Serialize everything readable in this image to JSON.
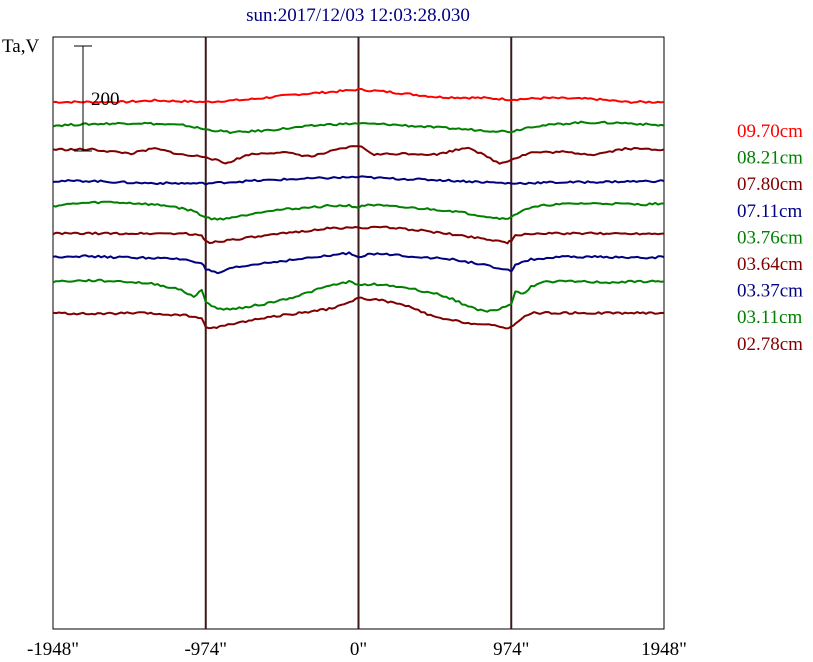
{
  "chart_data": {
    "type": "line",
    "title": "sun:2017/12/03 12:03:28.030",
    "ylabel": "Ta,V",
    "x_unit": "arcsec",
    "xlim": [
      -1948,
      1948
    ],
    "x_ticks": [
      {
        "value": -1948,
        "label": "-1948\""
      },
      {
        "value": -974,
        "label": "-974\""
      },
      {
        "value": 0,
        "label": "0\""
      },
      {
        "value": 974,
        "label": "974\""
      },
      {
        "value": 1948,
        "label": "1948\""
      }
    ],
    "vertical_reference_lines": [
      -974,
      0,
      974
    ],
    "scale_bar": {
      "value": 200,
      "label": "200"
    },
    "series": [
      {
        "name": "09.70cm",
        "color": "#ff0000",
        "offset": 0,
        "x": [
          -1948,
          -1500,
          -1300,
          -974,
          -700,
          -400,
          -100,
          0,
          200,
          500,
          800,
          974,
          1200,
          1500,
          1700,
          1948
        ],
        "y": [
          0,
          0,
          3,
          0,
          5,
          15,
          22,
          25,
          20,
          10,
          8,
          5,
          8,
          6,
          0,
          0
        ]
      },
      {
        "name": "08.21cm",
        "color": "#008000",
        "offset": -47,
        "x": [
          -1948,
          -1700,
          -1400,
          -1100,
          -974,
          -800,
          -600,
          -400,
          -200,
          0,
          200,
          400,
          600,
          800,
          974,
          1100,
          1400,
          1700,
          1948
        ],
        "y": [
          0,
          3,
          5,
          0,
          -8,
          -14,
          -10,
          -4,
          2,
          4,
          2,
          -2,
          -6,
          -10,
          -12,
          -2,
          6,
          5,
          0
        ]
      },
      {
        "name": "07.80cm",
        "color": "#800000",
        "offset": -95,
        "x": [
          -1948,
          -1700,
          -1450,
          -1300,
          -1100,
          -974,
          -850,
          -700,
          -500,
          -300,
          -100,
          0,
          100,
          300,
          500,
          700,
          900,
          974,
          1100,
          1300,
          1500,
          1700,
          1948
        ],
        "y": [
          0,
          0,
          -8,
          2,
          -12,
          -14,
          -28,
          -10,
          -5,
          -14,
          2,
          8,
          -10,
          -8,
          -10,
          5,
          -28,
          -20,
          -6,
          -5,
          -10,
          2,
          0
        ]
      },
      {
        "name": "07.11cm",
        "color": "#000080",
        "offset": -158,
        "x": [
          -1948,
          -1700,
          -1400,
          -974,
          -700,
          -400,
          -100,
          0,
          200,
          500,
          800,
          974,
          1200,
          1500,
          1948
        ],
        "y": [
          0,
          0,
          -4,
          -5,
          0,
          4,
          7,
          8,
          5,
          2,
          -2,
          -5,
          -3,
          -2,
          0
        ]
      },
      {
        "name": "03.76cm",
        "color": "#008000",
        "offset": -203,
        "x": [
          -1948,
          -1800,
          -1600,
          -1400,
          -1200,
          -1050,
          -974,
          -900,
          -750,
          -600,
          -400,
          -200,
          -60,
          0,
          60,
          200,
          400,
          600,
          800,
          900,
          974,
          1050,
          1200,
          1400,
          1600,
          1800,
          1948
        ],
        "y": [
          -5,
          0,
          3,
          0,
          -5,
          -15,
          -28,
          -32,
          -25,
          -15,
          -10,
          -5,
          -4,
          -8,
          -2,
          -6,
          -10,
          -15,
          -25,
          -30,
          -28,
          -12,
          -3,
          0,
          0,
          -2,
          0
        ]
      },
      {
        "name": "03.64cm",
        "color": "#800000",
        "offset": -263,
        "x": [
          -1948,
          -1600,
          -1100,
          -1000,
          -974,
          -950,
          -800,
          -600,
          -400,
          -200,
          0,
          200,
          400,
          600,
          800,
          950,
          974,
          1000,
          1100,
          1600,
          1948
        ],
        "y": [
          0,
          0,
          0,
          -5,
          -15,
          -18,
          -12,
          -5,
          3,
          10,
          12,
          12,
          6,
          -2,
          -10,
          -18,
          -15,
          -5,
          0,
          0,
          0
        ]
      },
      {
        "name": "03.37cm",
        "color": "#000080",
        "offset": -310,
        "x": [
          -1948,
          -1800,
          -1600,
          -1300,
          -1100,
          -1000,
          -974,
          -900,
          -800,
          -600,
          -400,
          -200,
          -60,
          0,
          60,
          200,
          400,
          600,
          800,
          900,
          974,
          1000,
          1100,
          1300,
          1600,
          1800,
          1948
        ],
        "y": [
          0,
          2,
          0,
          -2,
          -5,
          -12,
          -25,
          -33,
          -22,
          -12,
          -5,
          2,
          8,
          0,
          6,
          5,
          0,
          -5,
          -15,
          -25,
          -28,
          -15,
          -5,
          0,
          0,
          -2,
          0
        ]
      },
      {
        "name": "03.11cm",
        "color": "#008000",
        "offset": -359,
        "x": [
          -1948,
          -1700,
          -1500,
          -1300,
          -1150,
          -1050,
          -1000,
          -974,
          -900,
          -800,
          -600,
          -400,
          -200,
          -60,
          0,
          100,
          300,
          500,
          600,
          700,
          800,
          900,
          974,
          1000,
          1050,
          1100,
          1200,
          1400,
          1600,
          1800,
          1948
        ],
        "y": [
          0,
          2,
          0,
          -5,
          -15,
          -30,
          -18,
          -40,
          -55,
          -55,
          -45,
          -30,
          -10,
          0,
          -8,
          -5,
          -12,
          -25,
          -35,
          -50,
          -60,
          -55,
          -45,
          -20,
          -25,
          -10,
          0,
          0,
          -2,
          0,
          0
        ]
      },
      {
        "name": "02.78cm",
        "color": "#800000",
        "offset": -422,
        "x": [
          -1948,
          -1700,
          -1400,
          -1100,
          -1000,
          -974,
          -940,
          -850,
          -700,
          -500,
          -300,
          -150,
          0,
          150,
          300,
          500,
          700,
          850,
          940,
          974,
          1000,
          1100,
          1400,
          1700,
          1948
        ],
        "y": [
          0,
          -2,
          0,
          -5,
          -10,
          -30,
          -30,
          -25,
          -15,
          -5,
          3,
          10,
          30,
          25,
          15,
          -10,
          -20,
          -25,
          -30,
          -28,
          -20,
          0,
          0,
          0,
          0
        ]
      }
    ]
  }
}
